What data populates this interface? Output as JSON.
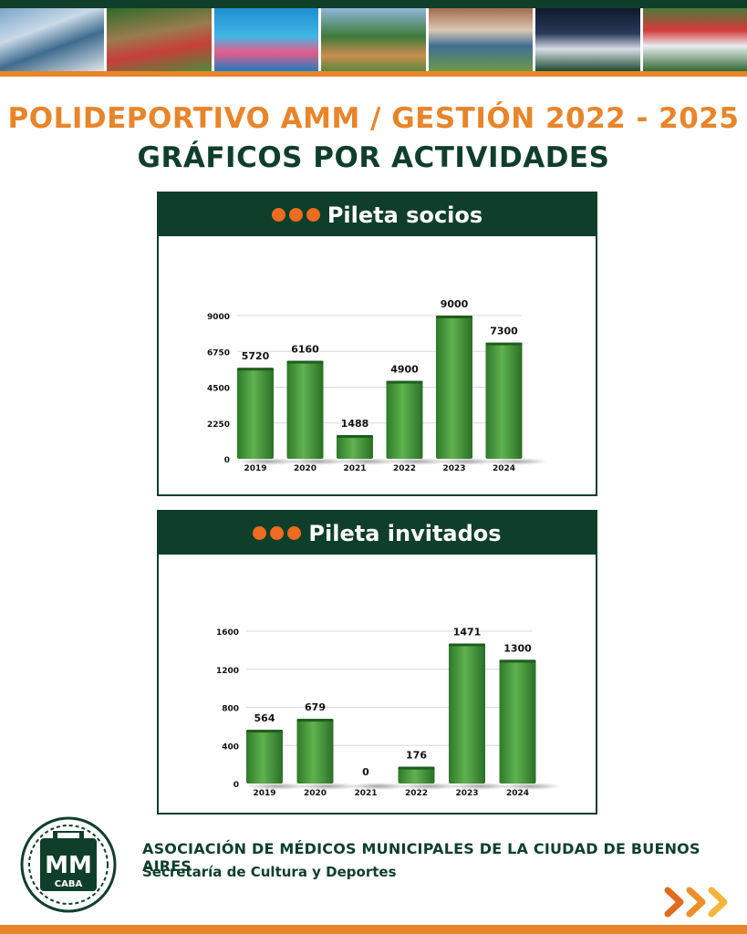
{
  "header": {
    "title_line_1": "POLIDEPORTIVO AMM / GESTIÓN 2022 - 2025",
    "title_line_2": "GRÁFICOS POR ACTIVIDADES"
  },
  "colors": {
    "dark_green": "#0f3f2b",
    "orange": "#e8852a",
    "dot_orange": "#ee6b1f",
    "bar_green": "#4a9a3f"
  },
  "chart_data": [
    {
      "type": "bar",
      "title": "Pileta socios",
      "categories": [
        "2019",
        "2020",
        "2021",
        "2022",
        "2023",
        "2024"
      ],
      "values": [
        5720,
        6160,
        1488,
        4900,
        9000,
        7300
      ],
      "value_labels": [
        "5720",
        "6160",
        "1488",
        "4900",
        "9000",
        "7300"
      ],
      "yticks": [
        0,
        2250,
        4500,
        6750,
        9000
      ],
      "ylim": [
        0,
        9000
      ],
      "grid": true,
      "xlabel": "",
      "ylabel": ""
    },
    {
      "type": "bar",
      "title": "Pileta invitados",
      "categories": [
        "2019",
        "2020",
        "2021",
        "2022",
        "2023",
        "2024"
      ],
      "values": [
        564,
        679,
        0,
        176,
        1471,
        1300
      ],
      "value_labels": [
        "564",
        "679",
        "0",
        "176",
        "1471",
        "1300"
      ],
      "yticks": [
        0,
        400,
        800,
        1200,
        1600
      ],
      "ylim": [
        0,
        1600
      ],
      "grid": true,
      "xlabel": "",
      "ylabel": ""
    }
  ],
  "footer": {
    "org_name": "ASOCIACIÓN DE MÉDICOS MUNICIPALES DE LA CIUDAD DE BUENOS AIRES",
    "department": "Secretaría de Cultura y Deportes",
    "logo_text_main": "MM",
    "logo_text_sub": "CABA"
  }
}
